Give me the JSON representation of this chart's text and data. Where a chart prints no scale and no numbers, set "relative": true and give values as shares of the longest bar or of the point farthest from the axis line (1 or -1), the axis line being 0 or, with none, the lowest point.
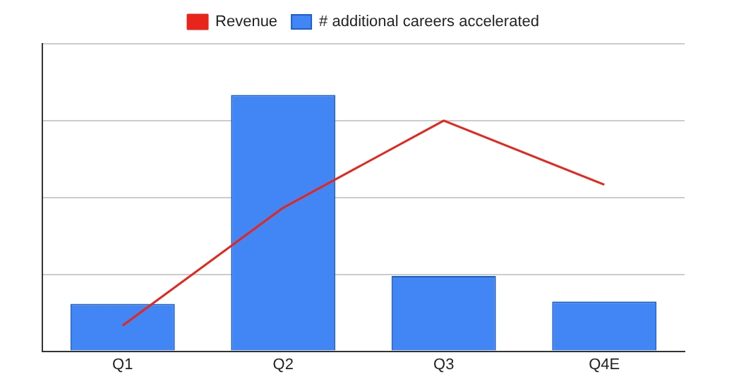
{
  "chart_data": {
    "type": "bar",
    "relative": true,
    "categories": [
      "Q1",
      "Q2",
      "Q3",
      "Q4E"
    ],
    "legend": "top",
    "grid": "y",
    "series": [
      {
        "name": "Revenue",
        "type": "line",
        "color": "#e8251c",
        "values": [
          0.1,
          0.56,
          0.9,
          0.65
        ]
      },
      {
        "name": "# additional careers accelerated",
        "color": "#4285f4",
        "values": [
          0.185,
          1,
          0.294,
          0.194
        ]
      }
    ]
  }
}
